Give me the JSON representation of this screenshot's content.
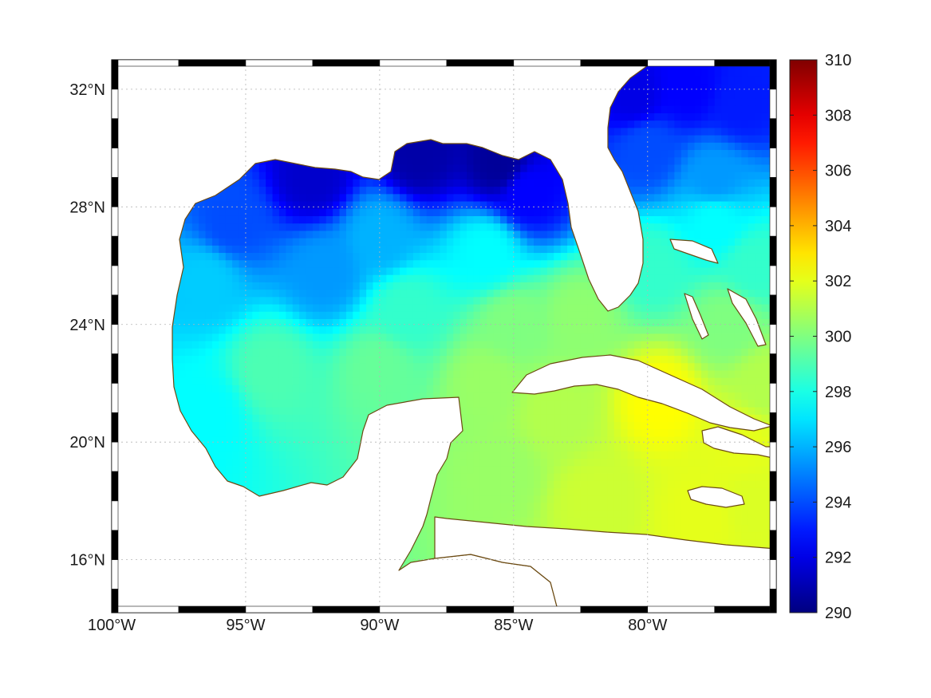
{
  "map": {
    "projection": "equirectangular",
    "extent": {
      "lon_min": -100,
      "lon_max": -75.2,
      "lat_min": 14.2,
      "lat_max": 33.0
    },
    "lon_ticks": [
      {
        "value": -100,
        "label": "100°W"
      },
      {
        "value": -95,
        "label": "95°W"
      },
      {
        "value": -90,
        "label": "90°W"
      },
      {
        "value": -85,
        "label": "85°W"
      },
      {
        "value": -80,
        "label": "80°W"
      }
    ],
    "lat_ticks": [
      {
        "value": 32,
        "label": "32°N"
      },
      {
        "value": 28,
        "label": "28°N"
      },
      {
        "value": 24,
        "label": "24°N"
      },
      {
        "value": 20,
        "label": "20°N"
      },
      {
        "value": 16,
        "label": "16°N"
      }
    ],
    "grid": true,
    "frame_style": "alternating black/white border",
    "coastline_color": "#6b4a12",
    "land_color": "#ffffff",
    "field": {
      "kind": "sea surface temperature field",
      "colormap": "jet",
      "sample_points": [
        {
          "lon": -92.5,
          "lat": 29.0,
          "value": 291.5
        },
        {
          "lon": -88.5,
          "lat": 29.8,
          "value": 290.8
        },
        {
          "lon": -85.5,
          "lat": 29.5,
          "value": 290.5
        },
        {
          "lon": -84.5,
          "lat": 28.5,
          "value": 292.5
        },
        {
          "lon": -95.5,
          "lat": 27.5,
          "value": 294.0
        },
        {
          "lon": -90.0,
          "lat": 27.0,
          "value": 296.0
        },
        {
          "lon": -86.0,
          "lat": 26.5,
          "value": 297.5
        },
        {
          "lon": -92.0,
          "lat": 25.8,
          "value": 295.5
        },
        {
          "lon": -96.5,
          "lat": 25.5,
          "value": 296.5
        },
        {
          "lon": -89.0,
          "lat": 24.5,
          "value": 298.5
        },
        {
          "lon": -85.0,
          "lat": 24.0,
          "value": 300.0
        },
        {
          "lon": -82.5,
          "lat": 24.3,
          "value": 300.3
        },
        {
          "lon": -94.0,
          "lat": 22.5,
          "value": 299.0
        },
        {
          "lon": -96.5,
          "lat": 21.0,
          "value": 297.5
        },
        {
          "lon": -90.0,
          "lat": 22.5,
          "value": 299.5
        },
        {
          "lon": -86.0,
          "lat": 22.0,
          "value": 300.5
        },
        {
          "lon": -83.5,
          "lat": 21.0,
          "value": 301.0
        },
        {
          "lon": -79.5,
          "lat": 21.5,
          "value": 302.5
        },
        {
          "lon": -76.5,
          "lat": 20.0,
          "value": 302.0
        },
        {
          "lon": -85.5,
          "lat": 19.0,
          "value": 300.5
        },
        {
          "lon": -82.0,
          "lat": 18.0,
          "value": 301.5
        },
        {
          "lon": -78.0,
          "lat": 17.5,
          "value": 302.0
        },
        {
          "lon": -76.0,
          "lat": 17.8,
          "value": 301.8
        },
        {
          "lon": -80.5,
          "lat": 31.8,
          "value": 292.0
        },
        {
          "lon": -78.5,
          "lat": 32.0,
          "value": 292.5
        },
        {
          "lon": -76.5,
          "lat": 31.5,
          "value": 293.0
        },
        {
          "lon": -80.0,
          "lat": 30.0,
          "value": 294.0
        },
        {
          "lon": -77.5,
          "lat": 29.0,
          "value": 295.5
        },
        {
          "lon": -77.5,
          "lat": 27.5,
          "value": 297.5
        },
        {
          "lon": -79.8,
          "lat": 26.0,
          "value": 298.5
        },
        {
          "lon": -76.0,
          "lat": 26.0,
          "value": 298.5
        },
        {
          "lon": -77.0,
          "lat": 24.0,
          "value": 300.0
        },
        {
          "lon": -75.6,
          "lat": 22.0,
          "value": 301.0
        }
      ]
    }
  },
  "colorbar": {
    "min": 290,
    "max": 310,
    "ticks": [
      {
        "value": 310,
        "label": "310"
      },
      {
        "value": 308,
        "label": "308"
      },
      {
        "value": 306,
        "label": "306"
      },
      {
        "value": 304,
        "label": "304"
      },
      {
        "value": 302,
        "label": "302"
      },
      {
        "value": 300,
        "label": "300"
      },
      {
        "value": 298,
        "label": "298"
      },
      {
        "value": 296,
        "label": "296"
      },
      {
        "value": 294,
        "label": "294"
      },
      {
        "value": 292,
        "label": "292"
      },
      {
        "value": 290,
        "label": "290"
      }
    ]
  }
}
